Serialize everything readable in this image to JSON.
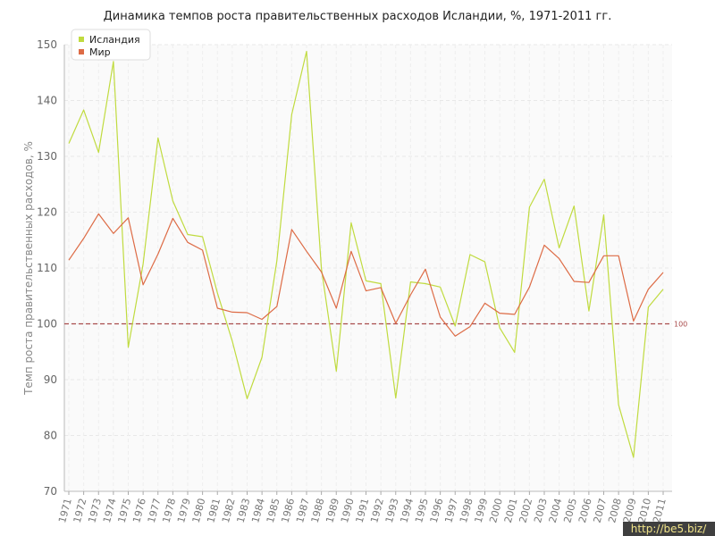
{
  "chart_data": {
    "type": "line",
    "title": "Динамика темпов роста правительственных расходов Исландии, %, 1971-2011 гг.",
    "xlabel": "",
    "ylabel": "Темп роста правительственных расходов, %",
    "ylim": [
      70,
      150
    ],
    "yticks": [
      70,
      80,
      90,
      100,
      110,
      120,
      130,
      140,
      150
    ],
    "grid": true,
    "legend_position": "top-left",
    "x": [
      "1971",
      "1972",
      "1973",
      "1974",
      "1975",
      "1976",
      "1977",
      "1978",
      "1979",
      "1980",
      "1981",
      "1982",
      "1983",
      "1984",
      "1985",
      "1986",
      "1987",
      "1988",
      "1989",
      "1990",
      "1991",
      "1992",
      "1993",
      "1994",
      "1995",
      "1996",
      "1997",
      "1998",
      "1999",
      "2000",
      "2001",
      "2002",
      "2003",
      "2004",
      "2005",
      "2006",
      "2007",
      "2008",
      "2009",
      "2010",
      "2011"
    ],
    "series": [
      {
        "name": "Исландия",
        "color": "#c0db3f",
        "values": [
          132.3,
          138.3,
          130.7,
          147.0,
          95.8,
          110.7,
          133.3,
          122.0,
          116.0,
          115.6,
          105.5,
          96.9,
          86.6,
          94.0,
          111.3,
          137.5,
          148.8,
          109.9,
          91.5,
          118.1,
          107.7,
          107.2,
          86.7,
          107.5,
          107.2,
          106.6,
          99.6,
          112.4,
          111.1,
          99.3,
          94.9,
          120.9,
          125.9,
          113.6,
          121.1,
          102.3,
          119.5,
          85.5,
          76.1,
          103.0,
          106.2
        ]
      },
      {
        "name": "Мир",
        "color": "#dd6b45",
        "values": [
          111.4,
          115.3,
          119.7,
          116.2,
          119.0,
          107.0,
          112.5,
          118.9,
          114.6,
          113.2,
          102.8,
          102.1,
          102.0,
          100.8,
          103.1,
          116.9,
          113.0,
          109.3,
          102.8,
          113.0,
          105.9,
          106.5,
          100.1,
          105.2,
          109.8,
          101.2,
          97.8,
          99.5,
          103.7,
          101.9,
          101.7,
          106.6,
          114.1,
          111.7,
          107.6,
          107.4,
          112.2,
          112.2,
          100.5,
          106.2,
          109.2
        ]
      }
    ],
    "reference_line": {
      "value": 100,
      "label": "100",
      "color": "#a94b4b"
    }
  },
  "watermark": "http://be5.biz/"
}
